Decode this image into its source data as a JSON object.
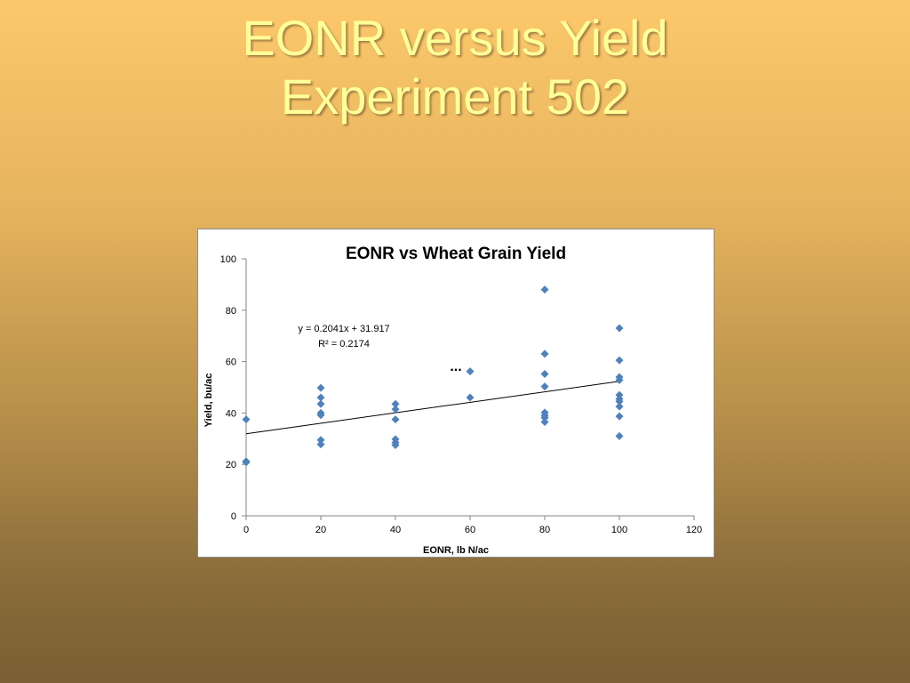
{
  "slide": {
    "title_line1": "EONR versus Yield",
    "title_line2": "Experiment 502",
    "title_color": "#ffff99"
  },
  "chart_data": {
    "type": "scatter",
    "title": "EONR vs Wheat Grain Yield",
    "xlabel": "EONR, lb N/ac",
    "ylabel": "Yield, bu/ac",
    "xlim": [
      0,
      120
    ],
    "ylim": [
      0,
      100
    ],
    "x_ticks": [
      0,
      20,
      40,
      60,
      80,
      100,
      120
    ],
    "y_ticks": [
      0,
      20,
      40,
      60,
      80,
      100
    ],
    "grid": false,
    "marker_color": "#4f81bd",
    "series": [
      {
        "x": [
          0,
          0,
          0,
          20,
          20,
          20,
          20,
          20,
          20,
          20,
          40,
          40,
          40,
          40,
          40,
          40,
          60,
          60,
          80,
          80,
          80,
          80,
          80,
          80,
          80,
          80,
          100,
          100,
          100,
          100,
          100,
          100,
          100,
          100,
          100,
          100
        ],
        "y": [
          37.5,
          21.2,
          20.8,
          49.8,
          46.0,
          43.5,
          40.0,
          39.2,
          29.5,
          27.8,
          43.5,
          41.5,
          37.5,
          29.8,
          28.5,
          27.5,
          56.2,
          46.0,
          88.0,
          63.0,
          55.2,
          50.3,
          40.2,
          39.0,
          38.2,
          36.5,
          73.0,
          60.5,
          54.0,
          52.8,
          47.0,
          45.5,
          44.5,
          42.5,
          38.7,
          31.0
        ]
      }
    ],
    "trendline": {
      "slope": 0.2041,
      "intercept": 31.917,
      "x_range": [
        0,
        100
      ],
      "equation_label": "y = 0.2041x + 31.917",
      "r2_label": "R² = 0.2174"
    },
    "annotation": "..."
  }
}
